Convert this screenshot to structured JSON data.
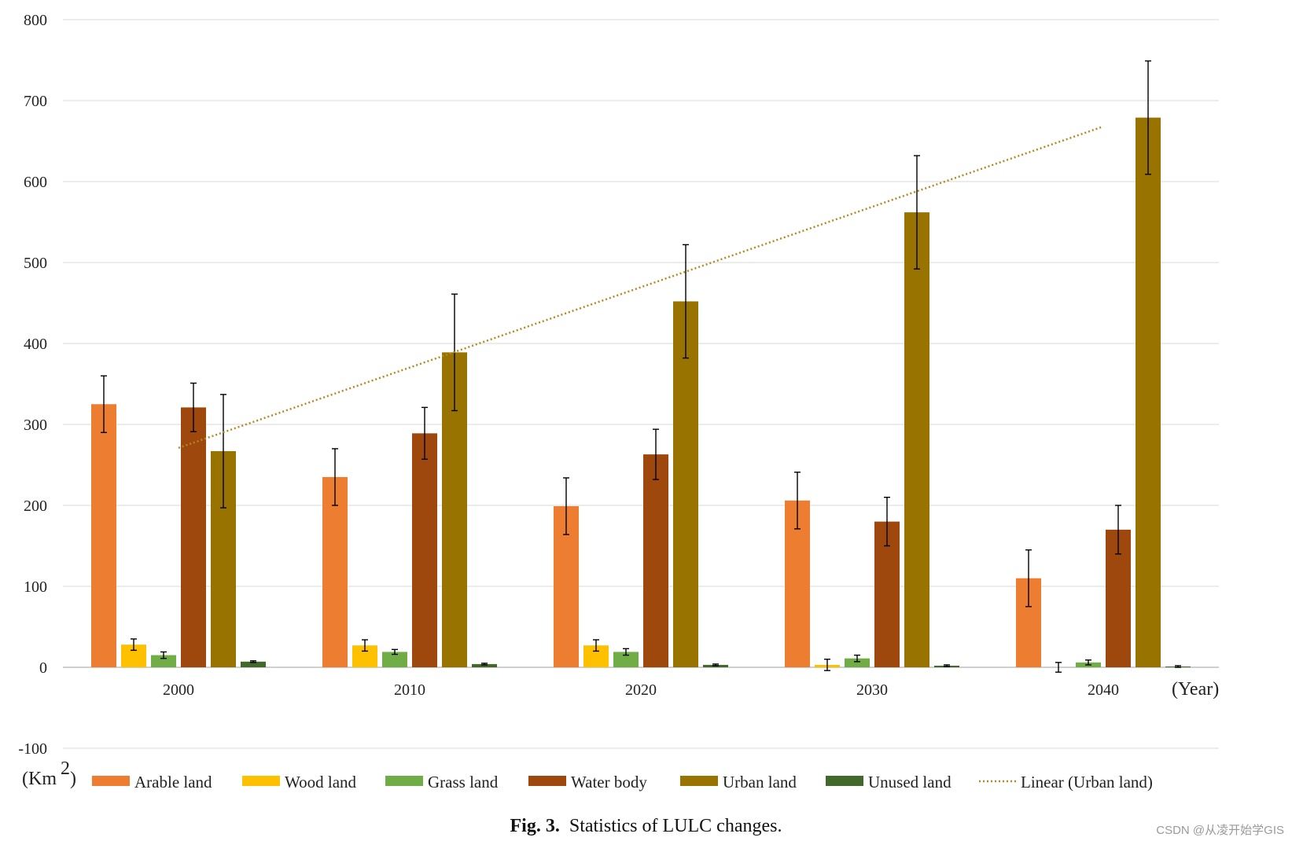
{
  "chart_data": {
    "type": "bar",
    "categories": [
      "2000",
      "2010",
      "2020",
      "2030",
      "2040"
    ],
    "x_unit_label": "(Year)",
    "y_unit_label": "(Km",
    "y_unit_superscript": "2",
    "y_unit_close": ")",
    "ylim": [
      -100,
      800
    ],
    "y_ticks": [
      -100,
      0,
      100,
      200,
      300,
      400,
      500,
      600,
      700,
      800
    ],
    "grid": true,
    "series": [
      {
        "name": "Arable land",
        "color": "#ED7D31",
        "values": [
          325,
          235,
          199,
          206,
          110
        ],
        "errors": [
          35,
          35,
          35,
          35,
          35
        ]
      },
      {
        "name": "Wood land",
        "color": "#FFC000",
        "values": [
          28,
          27,
          27,
          3,
          0
        ],
        "errors": [
          7,
          7,
          7,
          7,
          6
        ]
      },
      {
        "name": "Grass land",
        "color": "#70AD47",
        "values": [
          15,
          19,
          19,
          11,
          6
        ],
        "errors": [
          4,
          3,
          4,
          4,
          3
        ]
      },
      {
        "name": "Water body",
        "color": "#9E480E",
        "values": [
          321,
          289,
          263,
          180,
          170
        ],
        "errors": [
          30,
          32,
          31,
          30,
          30
        ]
      },
      {
        "name": "Urban land",
        "color": "#997300",
        "values": [
          267,
          389,
          452,
          562,
          679
        ],
        "errors": [
          70,
          72,
          70,
          70,
          70
        ]
      },
      {
        "name": "Unused land",
        "color": "#43682B",
        "values": [
          7,
          4,
          3,
          2,
          1
        ],
        "errors": [
          1,
          1,
          1,
          1,
          1
        ]
      }
    ],
    "trendline": {
      "name": "Linear (Urban land)",
      "of_series": "Urban land",
      "color": "#B08A1E",
      "start_value": 271,
      "end_value": 668
    },
    "legend_position": "bottom"
  },
  "caption": {
    "label": "Fig. 3.",
    "text": "Statistics of LULC changes."
  },
  "watermark": "CSDN @从凌开始学GIS"
}
